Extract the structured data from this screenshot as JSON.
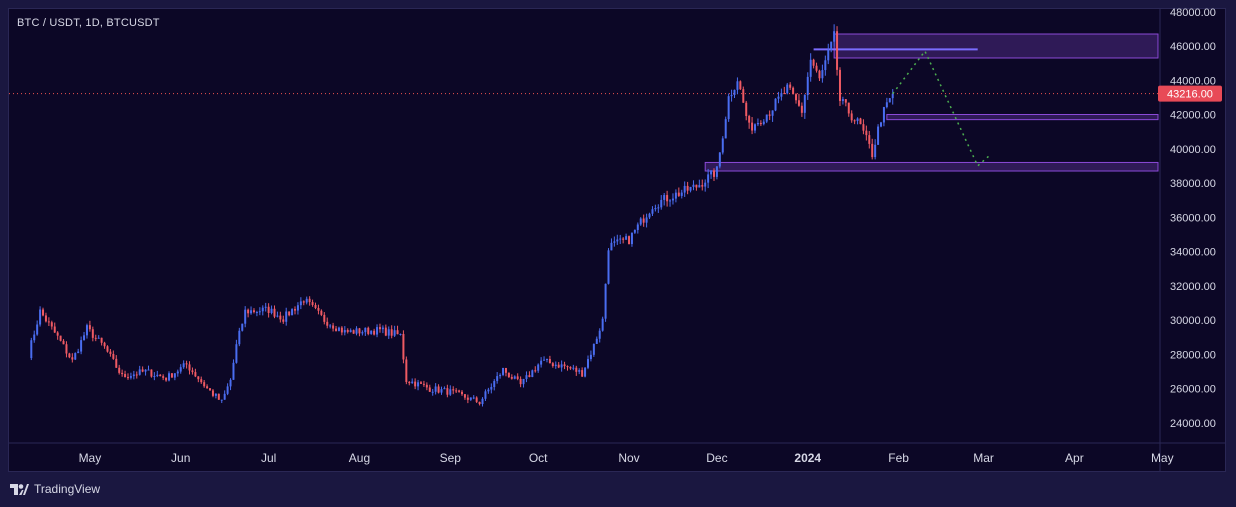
{
  "header": {
    "symbol_title": "BTC / USDT, 1D, BTCUSDT"
  },
  "footer": {
    "brand": "TradingView"
  },
  "chart_data": {
    "type": "candlestick",
    "symbol": "BTC / USDT",
    "interval": "1D",
    "ticker": "BTCUSDT",
    "y_ticks": [
      "48000.00",
      "46000.00",
      "44000.00",
      "42000.00",
      "40000.00",
      "38000.00",
      "36000.00",
      "34000.00",
      "32000.00",
      "30000.00",
      "28000.00",
      "26000.00",
      "24000.00"
    ],
    "x_ticks": [
      "May",
      "Jun",
      "Jul",
      "Aug",
      "Sep",
      "Oct",
      "Nov",
      "Dec",
      "2024",
      "Feb",
      "Mar",
      "Apr",
      "May"
    ],
    "ylim": [
      23000,
      48200
    ],
    "current_price": "43216.00",
    "colors": {
      "up": "#4a6df0",
      "down": "#ef5a63",
      "zone": "#8b4ad8",
      "projection": "#4caf50",
      "price_line": "#ef5350",
      "price_label_bg": "#e84a57"
    },
    "close_path": [
      [
        "2023-04-10",
        28000
      ],
      [
        "2023-04-14",
        30500
      ],
      [
        "2023-04-20",
        29000
      ],
      [
        "2023-04-25",
        27600
      ],
      [
        "2023-04-30",
        29500
      ],
      [
        "2023-05-06",
        28400
      ],
      [
        "2023-05-12",
        26700
      ],
      [
        "2023-05-20",
        27000
      ],
      [
        "2023-05-27",
        26600
      ],
      [
        "2023-06-03",
        27400
      ],
      [
        "2023-06-10",
        26000
      ],
      [
        "2023-06-15",
        25200
      ],
      [
        "2023-06-18",
        26500
      ],
      [
        "2023-06-20",
        28500
      ],
      [
        "2023-06-23",
        30500
      ],
      [
        "2023-07-01",
        30600
      ],
      [
        "2023-07-06",
        30100
      ],
      [
        "2023-07-13",
        31200
      ],
      [
        "2023-07-20",
        30000
      ],
      [
        "2023-07-27",
        29300
      ],
      [
        "2023-08-08",
        29400
      ],
      [
        "2023-08-15",
        29100
      ],
      [
        "2023-08-17",
        26500
      ],
      [
        "2023-08-25",
        26000
      ],
      [
        "2023-09-01",
        25800
      ],
      [
        "2023-09-11",
        25200
      ],
      [
        "2023-09-19",
        27100
      ],
      [
        "2023-09-25",
        26200
      ],
      [
        "2023-10-02",
        27600
      ],
      [
        "2023-10-10",
        27300
      ],
      [
        "2023-10-16",
        26900
      ],
      [
        "2023-10-20",
        28500
      ],
      [
        "2023-10-23",
        30000
      ],
      [
        "2023-10-25",
        34300
      ],
      [
        "2023-11-01",
        34700
      ],
      [
        "2023-11-09",
        36700
      ],
      [
        "2023-11-15",
        37200
      ],
      [
        "2023-11-24",
        37800
      ],
      [
        "2023-12-01",
        38700
      ],
      [
        "2023-12-05",
        43000
      ],
      [
        "2023-12-08",
        44100
      ],
      [
        "2023-12-12",
        41200
      ],
      [
        "2023-12-19",
        42200
      ],
      [
        "2023-12-25",
        43500
      ],
      [
        "2023-12-30",
        42200
      ],
      [
        "2024-01-02",
        45200
      ],
      [
        "2024-01-05",
        44000
      ],
      [
        "2024-01-10",
        46500
      ],
      [
        "2024-01-12",
        42800
      ],
      [
        "2024-01-19",
        41300
      ],
      [
        "2024-01-23",
        39700
      ],
      [
        "2024-01-26",
        41800
      ],
      [
        "2024-01-30",
        43216
      ]
    ],
    "zones": [
      {
        "from": "2024-01-10",
        "to": "2024-05-15",
        "low": 45300,
        "high": 46700
      },
      {
        "from": "2024-01-28",
        "to": "2024-05-15",
        "low": 41700,
        "high": 42000
      },
      {
        "from": "2023-11-27",
        "to": "2024-05-15",
        "low": 38700,
        "high": 39200
      }
    ],
    "lines": [
      {
        "from": "2024-01-03",
        "to": "2024-02-28",
        "price": 45800
      }
    ],
    "projection": [
      [
        "2024-01-30",
        43216
      ],
      [
        "2024-02-10",
        45700
      ],
      [
        "2024-02-28",
        39000
      ],
      [
        "2024-03-03",
        39600
      ]
    ]
  }
}
